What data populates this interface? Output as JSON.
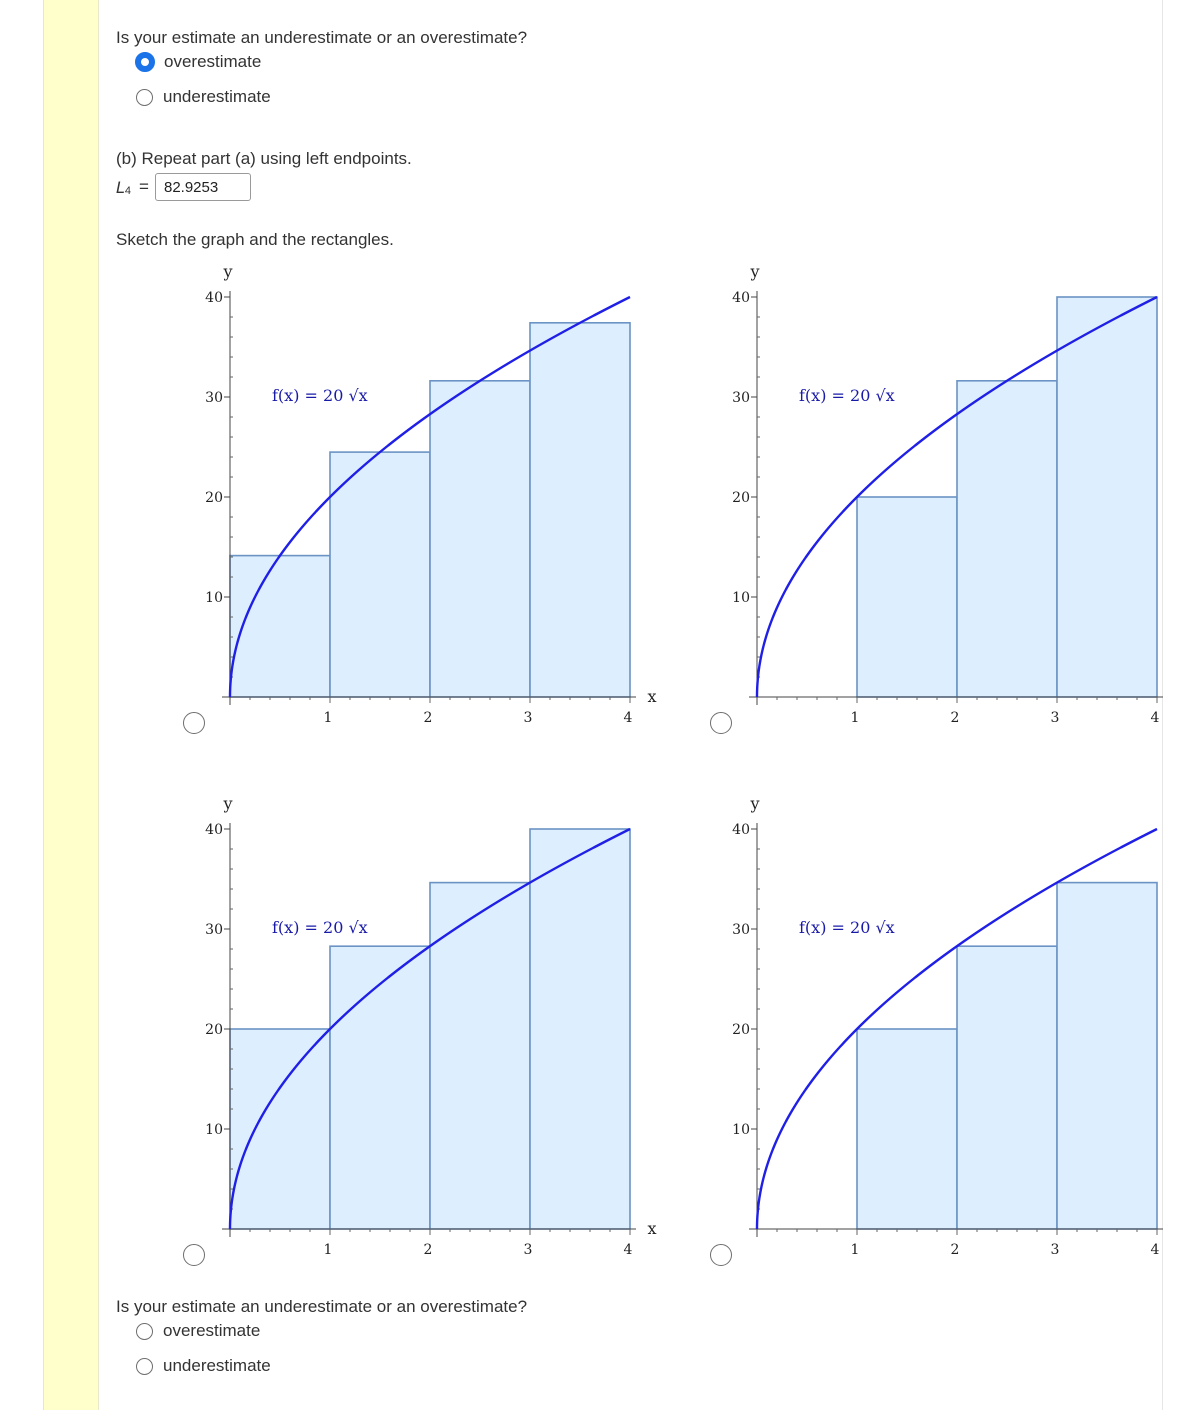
{
  "question_a": {
    "prompt": "Is your estimate an underestimate or an overestimate?",
    "options": [
      "overestimate",
      "underestimate"
    ],
    "selected": "overestimate"
  },
  "part_b": {
    "prompt": "(b) Repeat part (a) using left endpoints.",
    "symbol": "L",
    "subscript": "4",
    "equals": "=",
    "answer_value": "82.9253"
  },
  "sketch_prompt": "Sketch the graph and the rectangles.",
  "graphs": {
    "function_label": "f(x) = 20 √x",
    "x_axis_label": "x",
    "y_axis_label": "y",
    "x_ticks": [
      "1",
      "2",
      "3",
      "4"
    ],
    "y_ticks": [
      "10",
      "20",
      "30",
      "40"
    ],
    "options_selected": null
  },
  "chart_data": [
    {
      "type": "bar",
      "description_of_option": "top-left",
      "function": "20*sqrt(x)",
      "x_intervals": [
        [
          0,
          1
        ],
        [
          1,
          2
        ],
        [
          2,
          3
        ],
        [
          3,
          4
        ]
      ],
      "values": [
        14.14,
        24.49,
        31.62,
        37.42
      ],
      "xlim": [
        0,
        4
      ],
      "ylim": [
        0,
        40
      ],
      "x_axis_label_shown": true
    },
    {
      "type": "bar",
      "description_of_option": "top-right",
      "function": "20*sqrt(x)",
      "x_intervals": [
        [
          0,
          1
        ],
        [
          1,
          2
        ],
        [
          2,
          3
        ],
        [
          3,
          4
        ]
      ],
      "values": [
        0,
        20,
        31.62,
        40
      ],
      "xlim": [
        0,
        4
      ],
      "ylim": [
        0,
        40
      ],
      "x_axis_label_shown": false
    },
    {
      "type": "bar",
      "description_of_option": "bottom-left",
      "function": "20*sqrt(x)",
      "x_intervals": [
        [
          0,
          1
        ],
        [
          1,
          2
        ],
        [
          2,
          3
        ],
        [
          3,
          4
        ]
      ],
      "values": [
        20,
        28.28,
        34.64,
        40
      ],
      "xlim": [
        0,
        4
      ],
      "ylim": [
        0,
        40
      ],
      "x_axis_label_shown": true
    },
    {
      "type": "bar",
      "description_of_option": "bottom-right",
      "function": "20*sqrt(x)",
      "x_intervals": [
        [
          0,
          1
        ],
        [
          1,
          2
        ],
        [
          2,
          3
        ],
        [
          3,
          4
        ]
      ],
      "values": [
        0,
        20,
        28.28,
        34.64
      ],
      "xlim": [
        0,
        4
      ],
      "ylim": [
        0,
        40
      ],
      "x_axis_label_shown": false
    }
  ],
  "question_b": {
    "prompt": "Is your estimate an underestimate or an overestimate?",
    "options": [
      "overestimate",
      "underestimate"
    ],
    "selected": null
  },
  "colors": {
    "curve": "#1f1fe6",
    "rect_fill": "#ddeeff",
    "rect_stroke": "#6b93c4",
    "radio_selected": "#1a73e8",
    "stripe": "#ffffcc"
  }
}
